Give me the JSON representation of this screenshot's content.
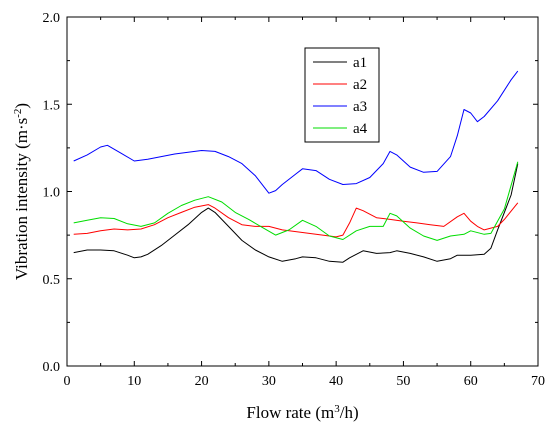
{
  "chart_data": {
    "type": "line",
    "title": "",
    "xlabel": "Flow rate (m³/h)",
    "xlabel_parts": [
      "Flow rate (m",
      "3",
      "/h)"
    ],
    "ylabel": "Vibration intensity (m·s⁻²)",
    "ylabel_parts": [
      "Vibration intensity (m·s",
      "-2",
      ")"
    ],
    "xlim": [
      0,
      70
    ],
    "ylim": [
      0.0,
      2.0
    ],
    "x_ticks": [
      0,
      10,
      20,
      30,
      40,
      50,
      60,
      70
    ],
    "y_ticks": [
      0.0,
      0.5,
      1.0,
      1.5,
      2.0
    ],
    "x_tick_labels": [
      "0",
      "10",
      "20",
      "30",
      "40",
      "50",
      "60",
      "70"
    ],
    "y_tick_labels": [
      "0.0",
      "0.5",
      "1.0",
      "1.5",
      "2.0"
    ],
    "grid": false,
    "legend_position": "top-center",
    "series": [
      {
        "name": "a1",
        "color": "#000000",
        "points": [
          [
            1,
            0.65
          ],
          [
            3,
            0.665
          ],
          [
            5,
            0.665
          ],
          [
            7,
            0.66
          ],
          [
            9,
            0.635
          ],
          [
            10,
            0.62
          ],
          [
            11,
            0.625
          ],
          [
            12,
            0.64
          ],
          [
            14,
            0.69
          ],
          [
            16,
            0.75
          ],
          [
            18,
            0.81
          ],
          [
            20,
            0.88
          ],
          [
            21,
            0.905
          ],
          [
            22,
            0.88
          ],
          [
            24,
            0.8
          ],
          [
            26,
            0.72
          ],
          [
            28,
            0.665
          ],
          [
            30,
            0.625
          ],
          [
            32,
            0.6
          ],
          [
            34,
            0.615
          ],
          [
            35,
            0.625
          ],
          [
            37,
            0.62
          ],
          [
            39,
            0.6
          ],
          [
            41,
            0.595
          ],
          [
            42,
            0.62
          ],
          [
            44,
            0.66
          ],
          [
            46,
            0.645
          ],
          [
            48,
            0.65
          ],
          [
            49,
            0.66
          ],
          [
            51,
            0.645
          ],
          [
            53,
            0.625
          ],
          [
            55,
            0.6
          ],
          [
            57,
            0.615
          ],
          [
            58,
            0.635
          ],
          [
            60,
            0.635
          ],
          [
            62,
            0.64
          ],
          [
            63,
            0.675
          ],
          [
            64,
            0.78
          ],
          [
            66,
            0.98
          ],
          [
            67,
            1.16
          ]
        ]
      },
      {
        "name": "a2",
        "color": "#ff0000",
        "points": [
          [
            1,
            0.755
          ],
          [
            3,
            0.76
          ],
          [
            5,
            0.775
          ],
          [
            7,
            0.785
          ],
          [
            9,
            0.78
          ],
          [
            11,
            0.785
          ],
          [
            13,
            0.81
          ],
          [
            15,
            0.85
          ],
          [
            17,
            0.88
          ],
          [
            19,
            0.91
          ],
          [
            21,
            0.925
          ],
          [
            22,
            0.905
          ],
          [
            24,
            0.85
          ],
          [
            26,
            0.81
          ],
          [
            28,
            0.8
          ],
          [
            30,
            0.8
          ],
          [
            32,
            0.78
          ],
          [
            34,
            0.77
          ],
          [
            36,
            0.76
          ],
          [
            38,
            0.75
          ],
          [
            40,
            0.74
          ],
          [
            41,
            0.75
          ],
          [
            42,
            0.82
          ],
          [
            43,
            0.905
          ],
          [
            44,
            0.89
          ],
          [
            46,
            0.85
          ],
          [
            48,
            0.84
          ],
          [
            50,
            0.83
          ],
          [
            52,
            0.82
          ],
          [
            54,
            0.81
          ],
          [
            56,
            0.8
          ],
          [
            58,
            0.855
          ],
          [
            59,
            0.875
          ],
          [
            60,
            0.83
          ],
          [
            61,
            0.8
          ],
          [
            62,
            0.78
          ],
          [
            64,
            0.8
          ],
          [
            65,
            0.84
          ],
          [
            67,
            0.935
          ]
        ]
      },
      {
        "name": "a3",
        "color": "#0000ff",
        "points": [
          [
            1,
            1.175
          ],
          [
            3,
            1.21
          ],
          [
            5,
            1.255
          ],
          [
            6,
            1.265
          ],
          [
            8,
            1.22
          ],
          [
            10,
            1.175
          ],
          [
            12,
            1.185
          ],
          [
            14,
            1.2
          ],
          [
            16,
            1.215
          ],
          [
            18,
            1.225
          ],
          [
            20,
            1.235
          ],
          [
            22,
            1.23
          ],
          [
            24,
            1.2
          ],
          [
            26,
            1.16
          ],
          [
            28,
            1.09
          ],
          [
            30,
            0.99
          ],
          [
            31,
            1.005
          ],
          [
            32,
            1.04
          ],
          [
            34,
            1.1
          ],
          [
            35,
            1.13
          ],
          [
            37,
            1.12
          ],
          [
            39,
            1.07
          ],
          [
            41,
            1.04
          ],
          [
            43,
            1.045
          ],
          [
            45,
            1.08
          ],
          [
            47,
            1.16
          ],
          [
            48,
            1.23
          ],
          [
            49,
            1.21
          ],
          [
            51,
            1.14
          ],
          [
            53,
            1.11
          ],
          [
            55,
            1.115
          ],
          [
            57,
            1.2
          ],
          [
            58,
            1.32
          ],
          [
            59,
            1.47
          ],
          [
            60,
            1.45
          ],
          [
            61,
            1.4
          ],
          [
            62,
            1.43
          ],
          [
            64,
            1.52
          ],
          [
            66,
            1.64
          ],
          [
            67,
            1.69
          ]
        ]
      },
      {
        "name": "a4",
        "color": "#00dd00",
        "points": [
          [
            1,
            0.82
          ],
          [
            3,
            0.835
          ],
          [
            5,
            0.85
          ],
          [
            7,
            0.845
          ],
          [
            9,
            0.815
          ],
          [
            11,
            0.8
          ],
          [
            13,
            0.82
          ],
          [
            15,
            0.875
          ],
          [
            17,
            0.92
          ],
          [
            19,
            0.95
          ],
          [
            21,
            0.97
          ],
          [
            23,
            0.94
          ],
          [
            25,
            0.88
          ],
          [
            27,
            0.84
          ],
          [
            29,
            0.795
          ],
          [
            31,
            0.75
          ],
          [
            33,
            0.78
          ],
          [
            35,
            0.835
          ],
          [
            37,
            0.8
          ],
          [
            39,
            0.745
          ],
          [
            41,
            0.725
          ],
          [
            43,
            0.775
          ],
          [
            45,
            0.8
          ],
          [
            47,
            0.8
          ],
          [
            48,
            0.875
          ],
          [
            49,
            0.86
          ],
          [
            51,
            0.79
          ],
          [
            53,
            0.745
          ],
          [
            55,
            0.72
          ],
          [
            57,
            0.745
          ],
          [
            59,
            0.755
          ],
          [
            60,
            0.775
          ],
          [
            62,
            0.755
          ],
          [
            63,
            0.76
          ],
          [
            65,
            0.9
          ],
          [
            67,
            1.17
          ]
        ]
      }
    ]
  }
}
